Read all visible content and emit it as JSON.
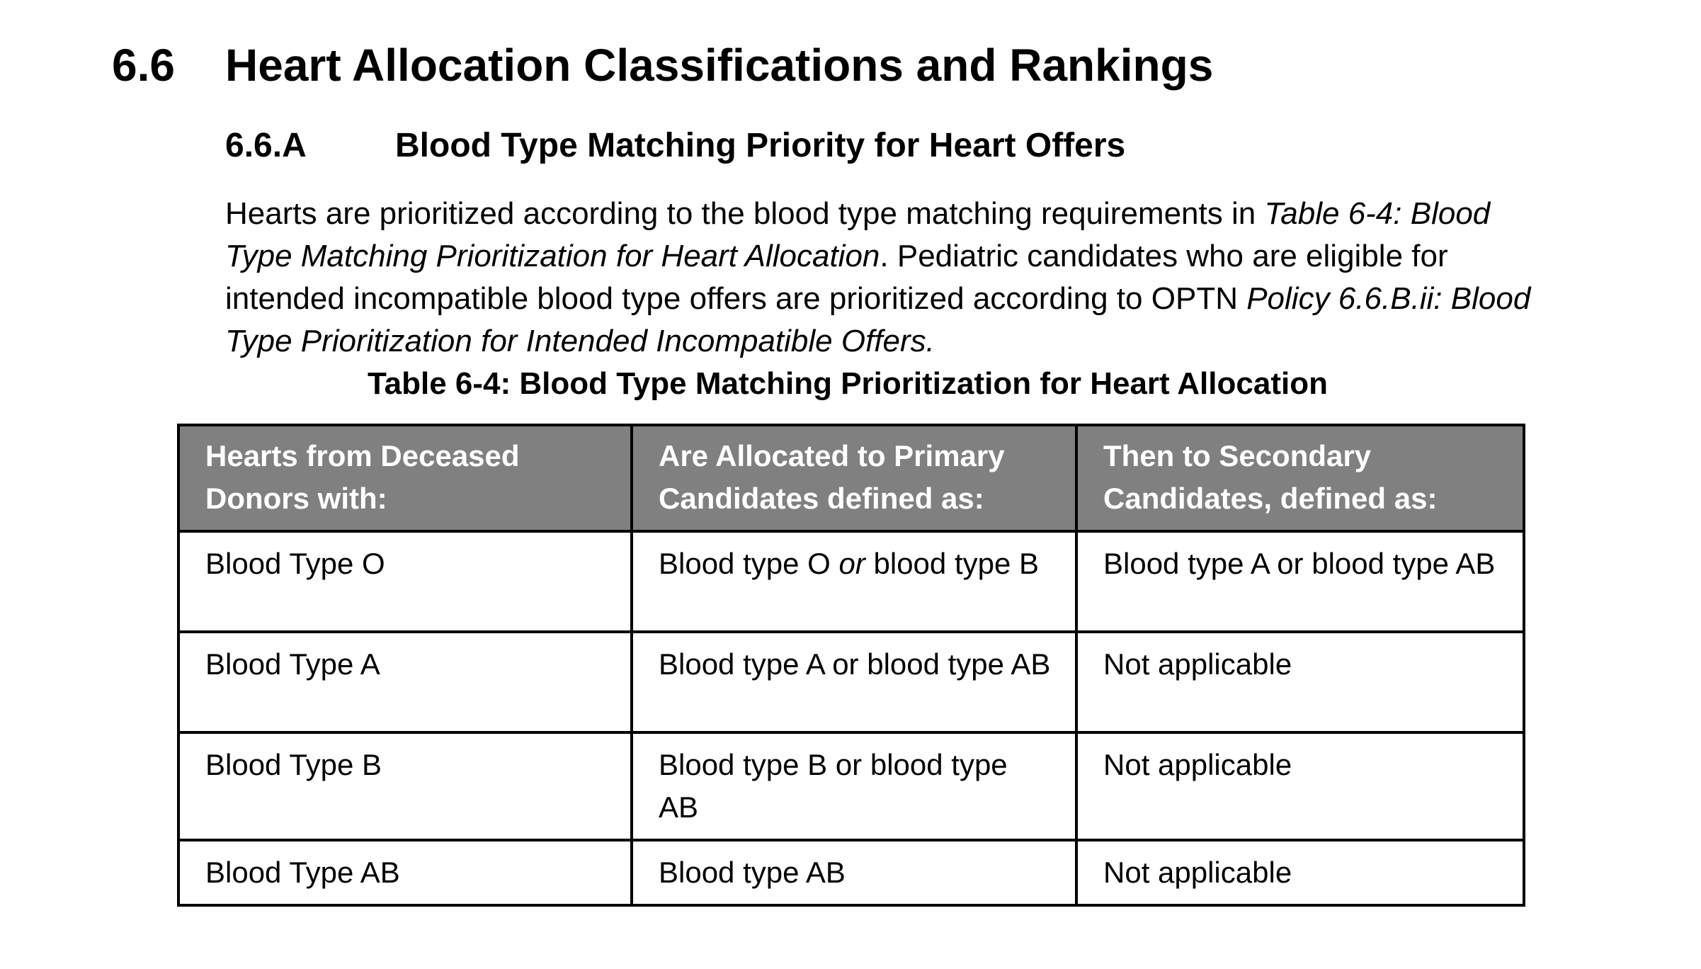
{
  "section": {
    "number": "6.6",
    "title": "Heart Allocation Classifications and Rankings"
  },
  "subsection": {
    "number": "6.6.A",
    "title": "Blood Type Matching Priority for Heart Offers"
  },
  "paragraph": {
    "line1_a": "Hearts are prioritized according to the blood type matching requirements in ",
    "line1_b": "Table 6-4: Blood",
    "line2_a": "Type Matching Prioritization for Heart Allocation",
    "line2_b": ". Pediatric candidates who are eligible for",
    "line3_a": "intended incompatible blood type offers are prioritized according to OPTN ",
    "line3_b": "Policy 6.6.B.ii: Blood",
    "line4": "Type Prioritization for Intended Incompatible Offers."
  },
  "table": {
    "caption": "Table 6-4: Blood Type Matching Prioritization for Heart Allocation",
    "headers": [
      {
        "line1": "Hearts from Deceased",
        "line2": "Donors with:"
      },
      {
        "line1": "Are Allocated to Primary",
        "line2": "Candidates defined as:"
      },
      {
        "line1": "Then to Secondary",
        "line2": "Candidates, defined as:"
      }
    ],
    "rows": [
      {
        "donor": "Blood Type O",
        "primary_a": "Blood type O ",
        "primary_or": "or",
        "primary_b": " blood type B",
        "secondary": "Blood type A or blood type AB"
      },
      {
        "donor": "Blood Type A",
        "primary": "Blood type A or blood type AB",
        "secondary": "Not applicable"
      },
      {
        "donor": "Blood Type B",
        "primary": "Blood type B or blood type AB",
        "secondary": "Not applicable"
      },
      {
        "donor": "Blood Type AB",
        "primary": "Blood type AB",
        "secondary": "Not applicable"
      }
    ]
  }
}
